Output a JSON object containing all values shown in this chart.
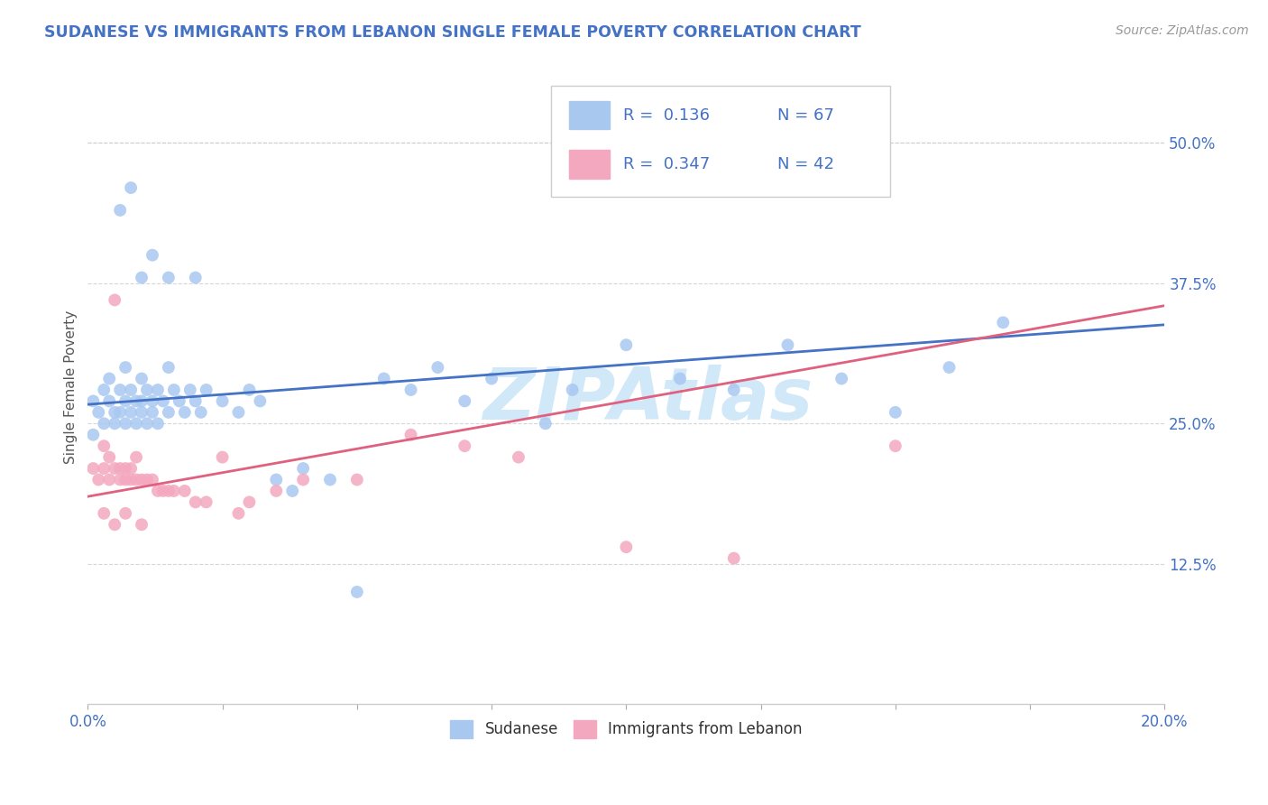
{
  "title": "SUDANESE VS IMMIGRANTS FROM LEBANON SINGLE FEMALE POVERTY CORRELATION CHART",
  "source_text": "Source: ZipAtlas.com",
  "ylabel": "Single Female Poverty",
  "xlim": [
    0.0,
    0.2
  ],
  "ylim": [
    0.0,
    0.565
  ],
  "xticks": [
    0.0,
    0.025,
    0.05,
    0.075,
    0.1,
    0.125,
    0.15,
    0.175,
    0.2
  ],
  "ytick_positions": [
    0.125,
    0.25,
    0.375,
    0.5
  ],
  "ytick_labels": [
    "12.5%",
    "25.0%",
    "37.5%",
    "50.0%"
  ],
  "series1_color": "#a8c8f0",
  "series2_color": "#f4a8c0",
  "line1_color": "#4472c4",
  "line2_color": "#e06080",
  "series1_label": "Sudanese",
  "series2_label": "Immigrants from Lebanon",
  "R1": 0.136,
  "N1": 67,
  "R2": 0.347,
  "N2": 42,
  "R_color": "#4472c4",
  "N_color": "#4472c4",
  "title_color": "#4472c4",
  "axis_tick_color": "#4472c4",
  "background_color": "#ffffff",
  "watermark_color": "#d0e8f8",
  "grid_color": "#cccccc",
  "sudanese_x": [
    0.001,
    0.001,
    0.002,
    0.003,
    0.003,
    0.004,
    0.004,
    0.005,
    0.005,
    0.006,
    0.006,
    0.007,
    0.007,
    0.007,
    0.008,
    0.008,
    0.009,
    0.009,
    0.01,
    0.01,
    0.01,
    0.011,
    0.011,
    0.012,
    0.012,
    0.013,
    0.013,
    0.014,
    0.015,
    0.015,
    0.016,
    0.017,
    0.018,
    0.019,
    0.02,
    0.021,
    0.022,
    0.025,
    0.028,
    0.03,
    0.032,
    0.035,
    0.038,
    0.04,
    0.045,
    0.05,
    0.055,
    0.06,
    0.065,
    0.07,
    0.075,
    0.085,
    0.09,
    0.1,
    0.11,
    0.12,
    0.13,
    0.14,
    0.15,
    0.16,
    0.17,
    0.006,
    0.008,
    0.01,
    0.012,
    0.015,
    0.02
  ],
  "sudanese_y": [
    0.27,
    0.24,
    0.26,
    0.28,
    0.25,
    0.27,
    0.29,
    0.26,
    0.25,
    0.28,
    0.26,
    0.27,
    0.25,
    0.3,
    0.26,
    0.28,
    0.27,
    0.25,
    0.27,
    0.29,
    0.26,
    0.28,
    0.25,
    0.27,
    0.26,
    0.28,
    0.25,
    0.27,
    0.3,
    0.26,
    0.28,
    0.27,
    0.26,
    0.28,
    0.27,
    0.26,
    0.28,
    0.27,
    0.26,
    0.28,
    0.27,
    0.2,
    0.19,
    0.21,
    0.2,
    0.1,
    0.29,
    0.28,
    0.3,
    0.27,
    0.29,
    0.25,
    0.28,
    0.32,
    0.29,
    0.28,
    0.32,
    0.29,
    0.26,
    0.3,
    0.34,
    0.44,
    0.46,
    0.38,
    0.4,
    0.38,
    0.38
  ],
  "lebanon_x": [
    0.001,
    0.002,
    0.003,
    0.003,
    0.004,
    0.004,
    0.005,
    0.005,
    0.006,
    0.006,
    0.007,
    0.007,
    0.008,
    0.008,
    0.009,
    0.009,
    0.01,
    0.011,
    0.012,
    0.013,
    0.014,
    0.015,
    0.016,
    0.018,
    0.02,
    0.022,
    0.025,
    0.028,
    0.03,
    0.035,
    0.04,
    0.05,
    0.06,
    0.07,
    0.08,
    0.1,
    0.12,
    0.15,
    0.003,
    0.005,
    0.007,
    0.01
  ],
  "lebanon_y": [
    0.21,
    0.2,
    0.21,
    0.23,
    0.2,
    0.22,
    0.21,
    0.36,
    0.2,
    0.21,
    0.21,
    0.2,
    0.21,
    0.2,
    0.22,
    0.2,
    0.2,
    0.2,
    0.2,
    0.19,
    0.19,
    0.19,
    0.19,
    0.19,
    0.18,
    0.18,
    0.22,
    0.17,
    0.18,
    0.19,
    0.2,
    0.2,
    0.24,
    0.23,
    0.22,
    0.14,
    0.13,
    0.23,
    0.17,
    0.16,
    0.17,
    0.16
  ]
}
